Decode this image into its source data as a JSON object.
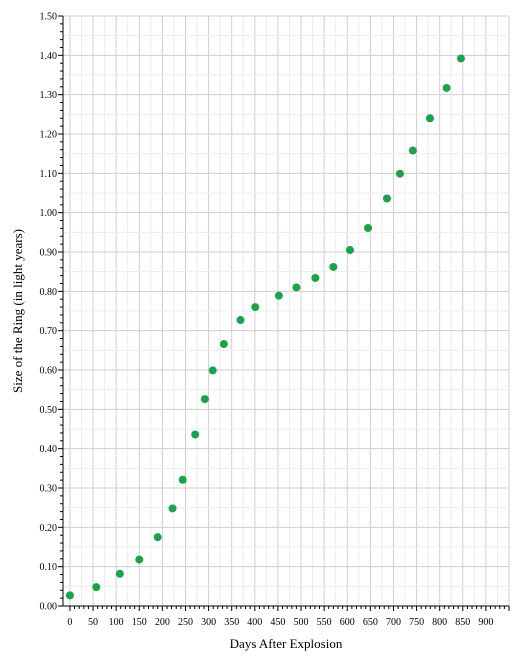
{
  "chart_data": {
    "type": "scatter",
    "title": "",
    "xlabel": "Days After Explosion",
    "ylabel": "Size of the Ring (in light years)",
    "xlim": [
      -15,
      950
    ],
    "ylim": [
      0,
      1.5
    ],
    "x_ticks": [
      0,
      50,
      100,
      150,
      200,
      250,
      300,
      350,
      400,
      450,
      500,
      550,
      600,
      650,
      700,
      750,
      800,
      850,
      900
    ],
    "y_ticks": [
      0.0,
      0.1,
      0.2,
      0.3,
      0.4,
      0.5,
      0.6,
      0.7,
      0.8,
      0.9,
      1.0,
      1.1,
      1.2,
      1.3,
      1.4,
      1.5
    ],
    "y_tick_labels": [
      "0.00",
      "0.10",
      "0.20",
      "0.30",
      "0.40",
      "0.50",
      "0.60",
      "0.70",
      "0.80",
      "0.90",
      "1.00",
      "1.10",
      "1.20",
      "1.30",
      "1.40",
      "1.50"
    ],
    "grid": true,
    "marker_color": "#1aa34a",
    "series": [
      {
        "x": [
          0,
          57,
          108,
          150,
          190,
          222,
          244,
          271,
          292,
          309,
          333,
          369,
          401,
          452,
          490,
          531,
          570,
          606,
          645,
          686,
          714,
          742,
          779,
          815,
          846
        ],
        "y": [
          0.027,
          0.048,
          0.082,
          0.118,
          0.175,
          0.248,
          0.321,
          0.436,
          0.526,
          0.599,
          0.666,
          0.727,
          0.76,
          0.789,
          0.81,
          0.834,
          0.862,
          0.905,
          0.961,
          1.036,
          1.099,
          1.158,
          1.24,
          1.317,
          1.392
        ]
      }
    ]
  }
}
